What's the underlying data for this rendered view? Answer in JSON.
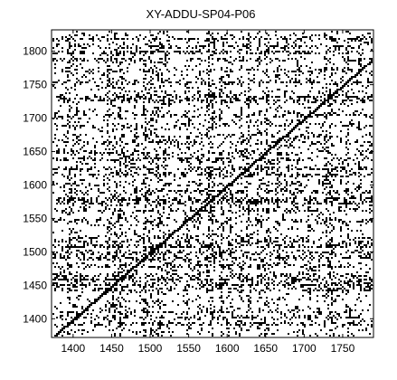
{
  "chart_data": {
    "type": "heatmap",
    "subtype": "binary recurrence plot",
    "title": "XY-ADDU-SP04-P06",
    "xlabel": "",
    "ylabel": "",
    "xlim": [
      1372,
      1790
    ],
    "ylim": [
      1372,
      1832
    ],
    "x_ticks": [
      1400,
      1450,
      1500,
      1550,
      1600,
      1650,
      1700,
      1750
    ],
    "y_ticks": [
      1400,
      1450,
      1500,
      1550,
      1600,
      1650,
      1700,
      1750,
      1800
    ],
    "grid": false,
    "legend": "none",
    "colors": {
      "background": "#ffffff",
      "points": "#000000",
      "axes": "#000000"
    },
    "dense_rows": [
      {
        "y": 1394,
        "density": 0.75
      },
      {
        "y": 1403,
        "density": 0.6
      },
      {
        "y": 1412,
        "density": 0.45
      },
      {
        "y": 1445,
        "density": 0.7
      },
      {
        "y": 1452,
        "density": 0.85
      },
      {
        "y": 1460,
        "density": 0.75
      },
      {
        "y": 1466,
        "density": 0.6
      },
      {
        "y": 1480,
        "density": 0.7
      },
      {
        "y": 1492,
        "density": 0.8
      },
      {
        "y": 1500,
        "density": 0.7
      },
      {
        "y": 1510,
        "density": 0.85
      },
      {
        "y": 1516,
        "density": 0.6
      },
      {
        "y": 1522,
        "density": 0.5
      },
      {
        "y": 1548,
        "density": 0.65
      },
      {
        "y": 1563,
        "density": 0.6
      },
      {
        "y": 1575,
        "density": 0.85
      },
      {
        "y": 1580,
        "density": 0.9
      },
      {
        "y": 1592,
        "density": 0.6
      },
      {
        "y": 1603,
        "density": 0.5
      },
      {
        "y": 1617,
        "density": 0.7
      },
      {
        "y": 1626,
        "density": 0.8
      },
      {
        "y": 1640,
        "density": 0.75
      },
      {
        "y": 1650,
        "density": 0.6
      },
      {
        "y": 1665,
        "density": 0.55
      },
      {
        "y": 1674,
        "density": 0.5
      },
      {
        "y": 1690,
        "density": 0.45
      },
      {
        "y": 1706,
        "density": 0.55
      },
      {
        "y": 1727,
        "density": 0.65
      },
      {
        "y": 1733,
        "density": 0.8
      },
      {
        "y": 1755,
        "density": 0.6
      },
      {
        "y": 1772,
        "density": 0.5
      },
      {
        "y": 1789,
        "density": 0.7
      },
      {
        "y": 1800,
        "density": 0.85
      },
      {
        "y": 1808,
        "density": 0.6
      },
      {
        "y": 1820,
        "density": 0.65
      }
    ],
    "background_density": 0.07
  }
}
